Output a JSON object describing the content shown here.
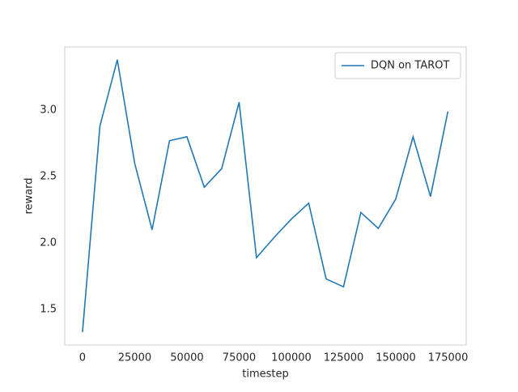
{
  "chart_data": {
    "type": "line",
    "xlabel": "timestep",
    "ylabel": "reward",
    "x": [
      0,
      8330,
      16660,
      24990,
      33320,
      41650,
      49980,
      58310,
      66640,
      74970,
      83300,
      91630,
      99960,
      108290,
      116620,
      124950,
      133280,
      141610,
      149940,
      158270,
      166600,
      174930
    ],
    "series": [
      {
        "name": "DQN on TAROT",
        "color": "#1f77b4",
        "values": [
          1.33,
          2.88,
          3.38,
          2.6,
          2.1,
          2.77,
          2.8,
          2.42,
          2.56,
          3.06,
          1.89,
          2.04,
          2.18,
          2.3,
          1.73,
          1.67,
          2.23,
          2.11,
          2.33,
          2.8,
          2.35,
          2.99
        ]
      }
    ],
    "xlim": [
      -8500,
      183700
    ],
    "ylim": [
      1.232,
      3.476
    ],
    "xticks": [
      0,
      25000,
      50000,
      75000,
      100000,
      125000,
      150000,
      175000
    ],
    "yticks": [
      1.5,
      {
        "value": 2.0,
        "label": "2.0"
      },
      2.5,
      {
        "value": 3.0,
        "label": "3.0"
      }
    ],
    "grid": false,
    "legend": "upper-right"
  }
}
